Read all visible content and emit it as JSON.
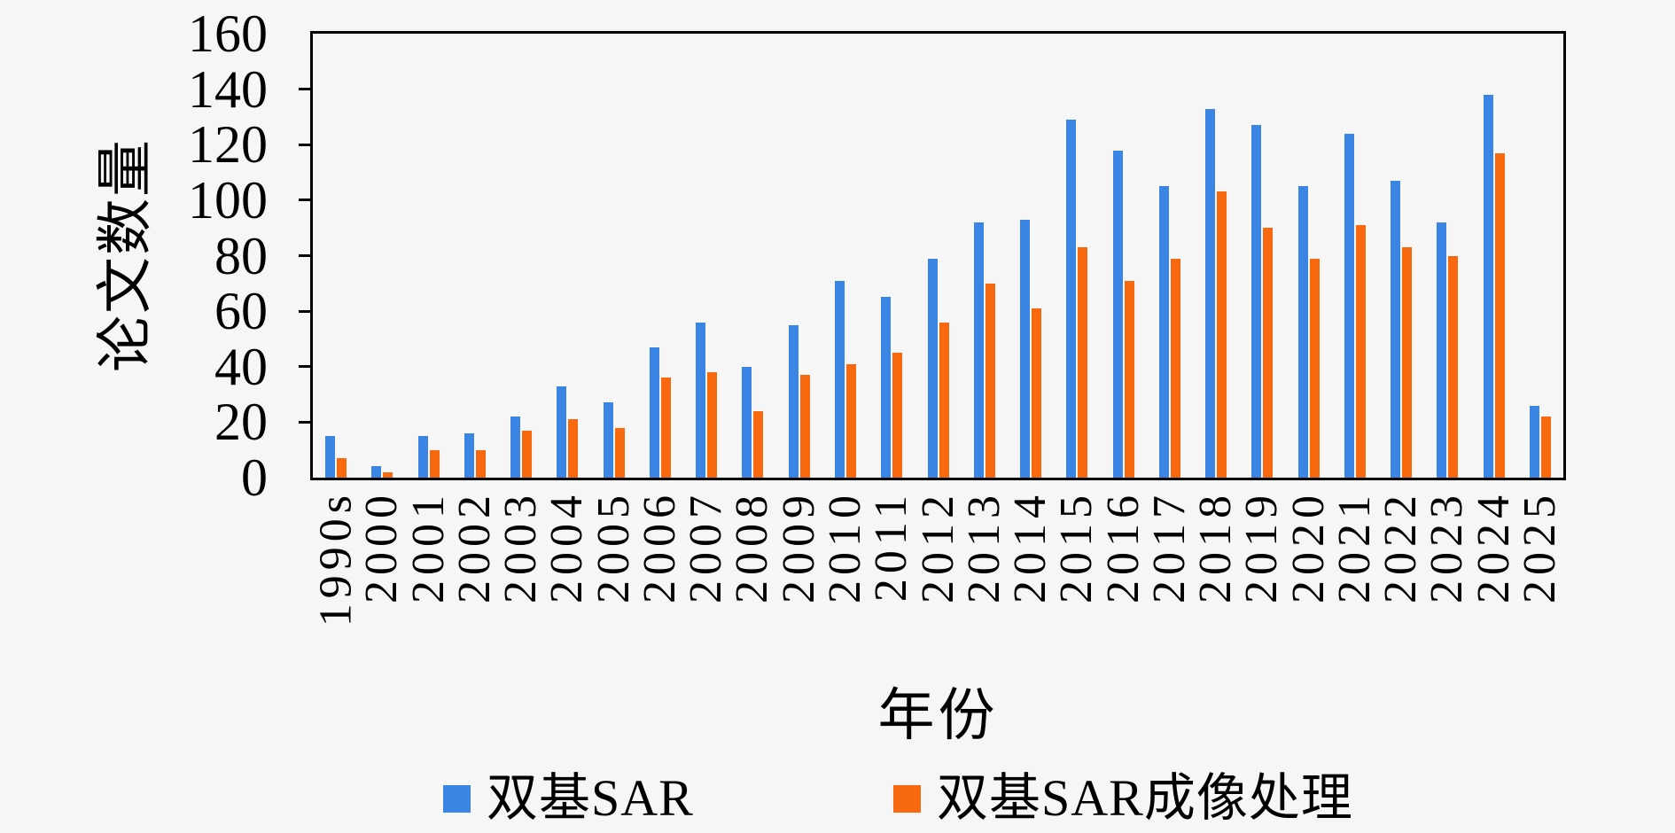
{
  "figure": {
    "background": "#f6f6f7",
    "frame_color": "#000000"
  },
  "chart_data": {
    "type": "bar",
    "title": "",
    "xlabel": "年份",
    "ylabel": "论文数量",
    "categories": [
      "1990s",
      "2000",
      "2001",
      "2002",
      "2003",
      "2004",
      "2005",
      "2006",
      "2007",
      "2008",
      "2009",
      "2010",
      "2011",
      "2012",
      "2013",
      "2014",
      "2015",
      "2016",
      "2017",
      "2018",
      "2019",
      "2020",
      "2021",
      "2022",
      "2023",
      "2024",
      "2025"
    ],
    "series": [
      {
        "name": "双基SAR",
        "color": "#3a84e4",
        "values": [
          15,
          4,
          15,
          16,
          22,
          33,
          27,
          47,
          56,
          40,
          55,
          71,
          65,
          79,
          92,
          93,
          129,
          118,
          105,
          133,
          127,
          105,
          124,
          107,
          92,
          138,
          26
        ]
      },
      {
        "name": "双基SAR成像处理",
        "color": "#f8690f",
        "values": [
          7,
          2,
          10,
          10,
          17,
          21,
          18,
          36,
          38,
          24,
          37,
          41,
          45,
          56,
          70,
          61,
          83,
          71,
          79,
          103,
          90,
          79,
          91,
          83,
          80,
          117,
          22
        ]
      }
    ],
    "ylim": [
      0,
      160
    ],
    "yticks": [
      0,
      20,
      40,
      60,
      80,
      100,
      120,
      140,
      160
    ],
    "grid": false,
    "legend_position": "bottom"
  }
}
